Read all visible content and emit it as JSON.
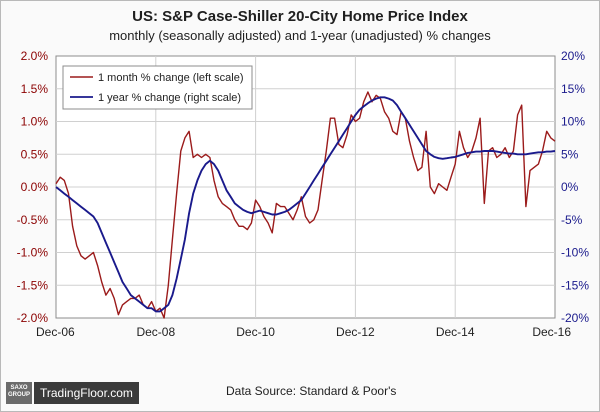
{
  "chart_data": {
    "type": "line",
    "title": "US: S&P Case-Shiller 20-City Home Price Index",
    "subtitle": "monthly (seasonally adjusted) and 1-year (unadjusted) % changes",
    "x_ticks": [
      "Dec-06",
      "Dec-08",
      "Dec-10",
      "Dec-12",
      "Dec-14",
      "Dec-16"
    ],
    "left_axis": {
      "ticks": [
        "2.0%",
        "1.5%",
        "1.0%",
        "0.5%",
        "0.0%",
        "-0.5%",
        "-1.0%",
        "-1.5%",
        "-2.0%"
      ],
      "ylim": [
        -2.0,
        2.0
      ]
    },
    "right_axis": {
      "ticks": [
        "20%",
        "15%",
        "10%",
        "5%",
        "0%",
        "-5%",
        "-10%",
        "-15%",
        "-20%"
      ],
      "ylim": [
        -20,
        20
      ]
    },
    "xlim": [
      0,
      120
    ],
    "grid": true,
    "legend_position": "top-left",
    "series": [
      {
        "name": "1 month % change (left scale)",
        "axis": "left",
        "color": "#9b1b1b",
        "values": [
          0.05,
          0.15,
          0.1,
          -0.1,
          -0.6,
          -0.9,
          -1.05,
          -1.1,
          -1.05,
          -1.0,
          -1.2,
          -1.45,
          -1.65,
          -1.55,
          -1.7,
          -1.95,
          -1.8,
          -1.75,
          -1.7,
          -1.7,
          -1.65,
          -1.8,
          -1.85,
          -1.75,
          -1.9,
          -1.85,
          -2.0,
          -1.5,
          -0.8,
          -0.1,
          0.55,
          0.75,
          0.85,
          0.45,
          0.5,
          0.45,
          0.5,
          0.45,
          0.1,
          -0.15,
          -0.25,
          -0.3,
          -0.35,
          -0.5,
          -0.6,
          -0.6,
          -0.65,
          -0.55,
          -0.2,
          -0.3,
          -0.45,
          -0.55,
          -0.7,
          -0.25,
          -0.3,
          -0.3,
          -0.4,
          -0.5,
          -0.35,
          -0.15,
          -0.45,
          -0.55,
          -0.5,
          -0.35,
          0.1,
          0.55,
          1.05,
          1.05,
          0.65,
          0.6,
          0.8,
          1.1,
          1.0,
          1.05,
          1.3,
          1.45,
          1.3,
          1.4,
          1.35,
          1.15,
          1.05,
          0.85,
          0.8,
          1.15,
          1.05,
          0.7,
          0.45,
          0.25,
          0.3,
          0.85,
          0.0,
          -0.1,
          0.05,
          0.0,
          -0.05,
          0.15,
          0.35,
          0.85,
          0.6,
          0.45,
          0.55,
          0.75,
          1.05,
          -0.25,
          0.55,
          0.6,
          0.45,
          0.5,
          0.6,
          0.45,
          0.55,
          1.1,
          1.25,
          -0.3,
          0.25,
          0.3,
          0.35,
          0.55,
          0.85,
          0.75,
          0.7
        ]
      },
      {
        "name": "1 year % change (right scale)",
        "axis": "right",
        "color": "#1a1a8c",
        "values": [
          0.0,
          -0.5,
          -1.0,
          -1.5,
          -2.0,
          -2.5,
          -3.0,
          -3.5,
          -4.0,
          -4.5,
          -5.5,
          -7.0,
          -8.5,
          -10.0,
          -11.5,
          -13.0,
          -14.5,
          -15.5,
          -16.5,
          -17.0,
          -17.5,
          -18.0,
          -18.5,
          -18.5,
          -19.0,
          -19.0,
          -18.5,
          -18.0,
          -16.5,
          -14.0,
          -11.0,
          -8.0,
          -4.0,
          -1.0,
          1.0,
          2.5,
          3.5,
          4.0,
          3.5,
          2.5,
          1.0,
          -0.5,
          -1.5,
          -2.5,
          -3.0,
          -3.5,
          -3.8,
          -4.0,
          -3.8,
          -3.6,
          -3.8,
          -4.0,
          -4.2,
          -4.2,
          -4.0,
          -3.8,
          -3.5,
          -3.0,
          -2.5,
          -2.0,
          -1.0,
          0.0,
          1.0,
          2.0,
          3.0,
          4.0,
          5.0,
          6.0,
          7.0,
          8.0,
          9.0,
          10.0,
          11.0,
          11.8,
          12.3,
          12.8,
          13.2,
          13.5,
          13.7,
          13.7,
          13.5,
          13.2,
          12.5,
          11.5,
          10.5,
          9.5,
          8.5,
          7.5,
          6.5,
          5.5,
          5.0,
          4.6,
          4.4,
          4.3,
          4.4,
          4.5,
          4.6,
          4.8,
          5.0,
          5.2,
          5.3,
          5.4,
          5.4,
          5.5,
          5.5,
          5.5,
          5.4,
          5.3,
          5.2,
          5.1,
          5.1,
          5.0,
          5.0,
          5.0,
          5.1,
          5.2,
          5.3,
          5.3,
          5.4,
          5.4,
          5.5
        ]
      }
    ]
  },
  "footer": {
    "logo_group": "SAXO GROUP",
    "logo_text": "TradingFloor.com",
    "source": "Data Source: Standard & Poor's"
  }
}
